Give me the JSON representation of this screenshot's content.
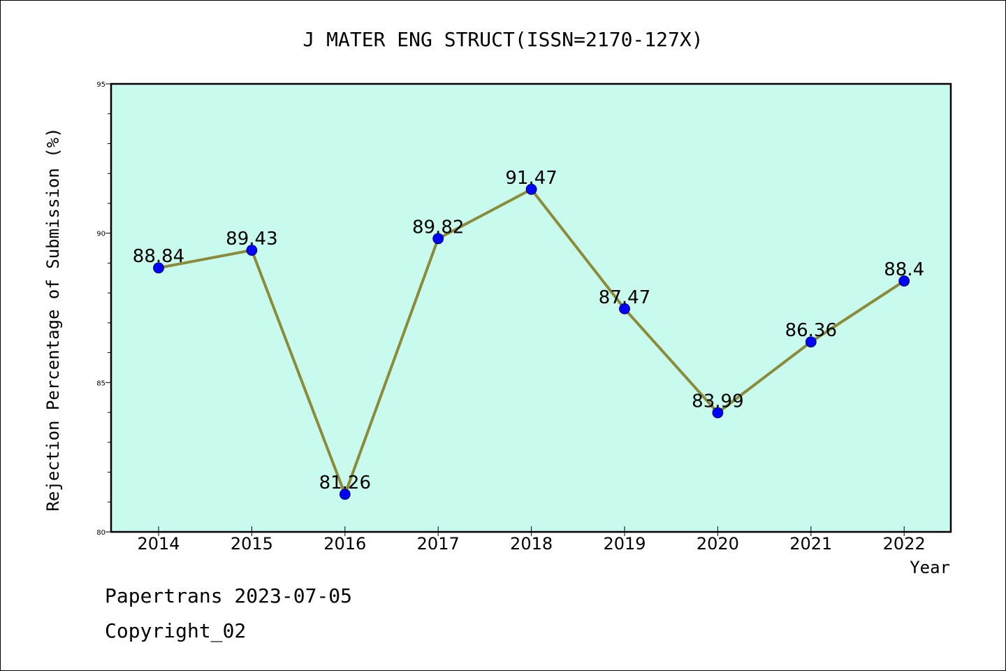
{
  "chart_data": {
    "type": "line",
    "title": "J MATER ENG STRUCT(ISSN=2170-127X)",
    "xlabel": "Year",
    "ylabel": "Rejection Percentage of Submission (%)",
    "ylim": [
      80,
      95
    ],
    "yticks": [
      80,
      85,
      90,
      95
    ],
    "categories": [
      "2014",
      "2015",
      "2016",
      "2017",
      "2018",
      "2019",
      "2020",
      "2021",
      "2022"
    ],
    "values": [
      88.84,
      89.43,
      81.26,
      89.82,
      91.47,
      87.47,
      83.99,
      86.36,
      88.4
    ],
    "data_labels": [
      "88.84",
      "89.43",
      "81.26",
      "89.82",
      "91.47",
      "87.47",
      "83.99",
      "86.36",
      "88.4"
    ],
    "grid": false,
    "colors": {
      "plot_background": "#c8fbee",
      "line": "#8b8b3a",
      "marker": "#0000ff"
    }
  },
  "footer": {
    "line1": "Papertrans 2023-07-05",
    "line2": "Copyright_02"
  }
}
